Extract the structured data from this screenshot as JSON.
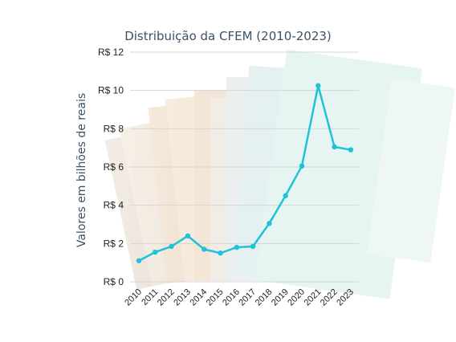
{
  "chart_data": {
    "type": "line",
    "title": "Distribuição da CFEM (2010-2023)",
    "xlabel": "",
    "ylabel": "Valores em bilhões de reais",
    "categories": [
      "2010",
      "2011",
      "2012",
      "2013",
      "2014",
      "2015",
      "2016",
      "2017",
      "2018",
      "2019",
      "2020",
      "2021",
      "2022",
      "2023"
    ],
    "series": [
      {
        "values": [
          1.1,
          1.55,
          1.85,
          2.4,
          1.7,
          1.5,
          1.8,
          1.85,
          3.05,
          4.5,
          6.05,
          10.25,
          7.05,
          6.9
        ]
      }
    ],
    "ylim": [
      0,
      12
    ],
    "yticks": [
      0,
      2,
      4,
      6,
      8,
      10,
      12
    ],
    "ytick_labels": [
      "R$ 0",
      "R$ 2",
      "R$ 4",
      "R$ 6",
      "R$ 8",
      "R$ 10",
      "R$ 12"
    ],
    "grid": "horizontal",
    "line_color": "#1fc2d6"
  }
}
